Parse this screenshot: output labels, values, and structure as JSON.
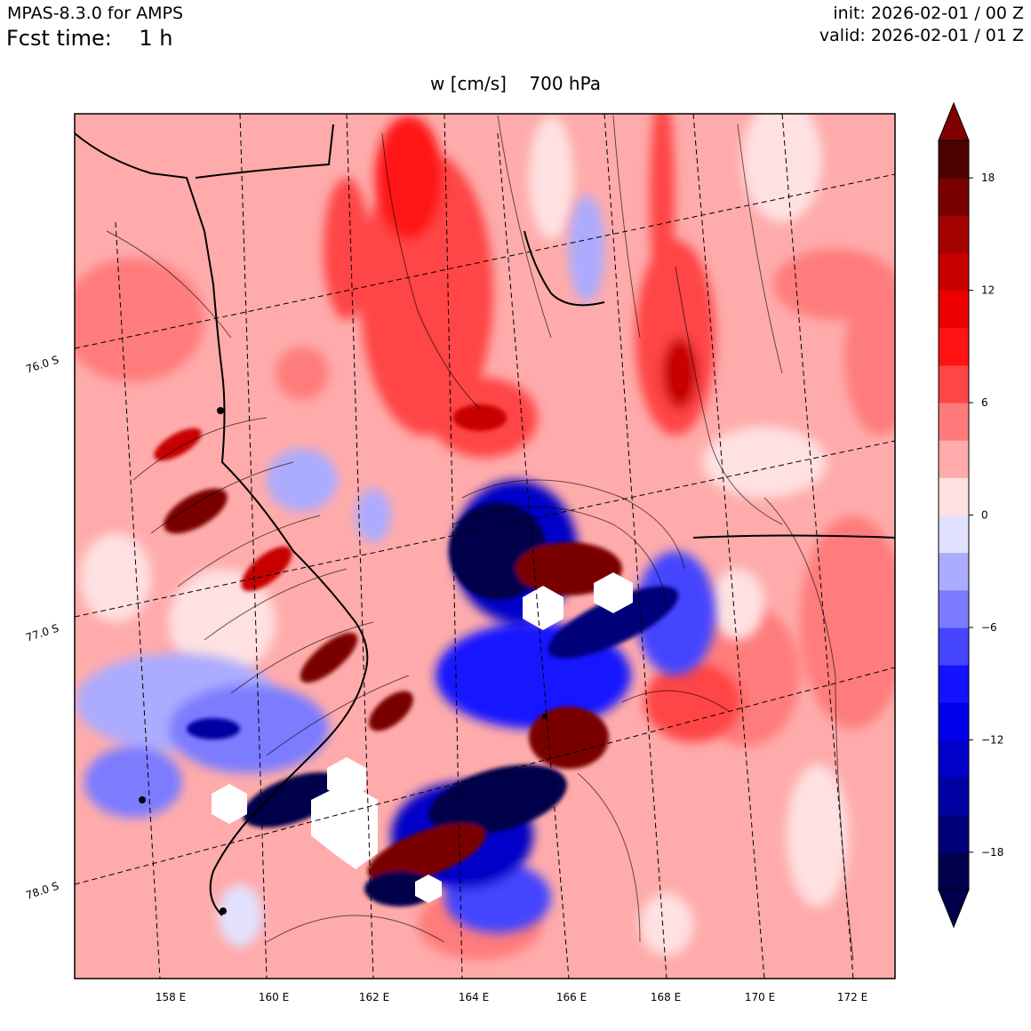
{
  "header": {
    "model": "MPAS-8.3.0 for AMPS",
    "fcst_label": "Fcst time:",
    "fcst_value": "1 h",
    "init": "init: 2026-02-01 / 00 Z",
    "valid": "valid: 2026-02-01 / 01 Z"
  },
  "plot_title": {
    "variable": "w [cm/s]",
    "level": "700 hPa"
  },
  "map": {
    "lon_ticks": [
      "158 E",
      "160 E",
      "162 E",
      "164 E",
      "166 E",
      "168 E",
      "170 E",
      "172 E"
    ],
    "lat_ticks": [
      "76.0 S",
      "77.0 S",
      "78.0 S"
    ]
  },
  "colorbar": {
    "levels": [
      -20,
      -18,
      -16,
      -14,
      -12,
      -10,
      -8,
      -6,
      -4,
      -2,
      0,
      2,
      4,
      6,
      8,
      10,
      12,
      14,
      16,
      18,
      20
    ],
    "colors": [
      "#00004c",
      "#00007a",
      "#0000a3",
      "#0000c8",
      "#0000ec",
      "#1313ff",
      "#4545ff",
      "#7b7bff",
      "#ababff",
      "#e1e1ff",
      "#ffe1e1",
      "#ffabab",
      "#ff7b7b",
      "#ff4545",
      "#ff1313",
      "#ec0000",
      "#c80000",
      "#a30000",
      "#7a0000",
      "#4c0000"
    ],
    "under_color": "#00004c",
    "over_color": "#800000",
    "tick_labels": [
      {
        "value": 18,
        "label": "18"
      },
      {
        "value": 12,
        "label": "12"
      },
      {
        "value": 6,
        "label": "6"
      },
      {
        "value": 0,
        "label": "0"
      },
      {
        "value": -6,
        "label": "−6"
      },
      {
        "value": -12,
        "label": "−12"
      },
      {
        "value": -18,
        "label": "−18"
      }
    ]
  }
}
